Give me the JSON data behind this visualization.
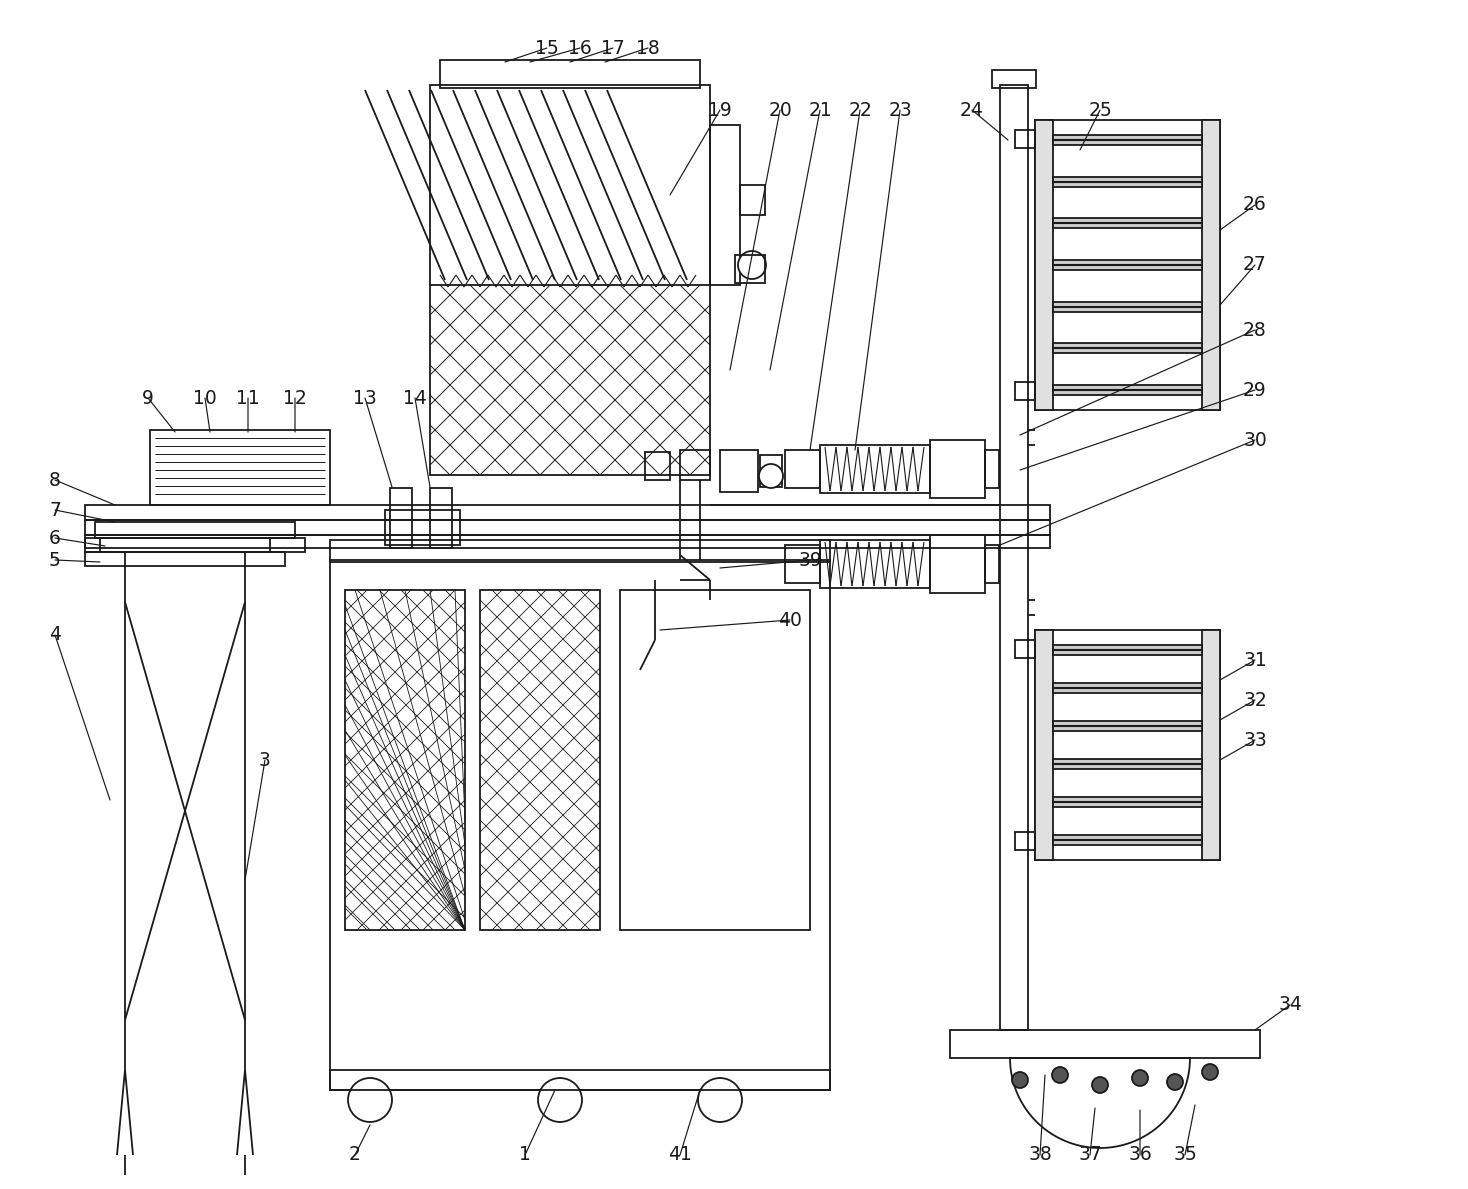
{
  "bg_color": "#ffffff",
  "line_color": "#1a1a1a",
  "lw": 1.3,
  "lw_thin": 0.7,
  "lw_thick": 2.0,
  "fig_width": 14.68,
  "fig_height": 11.89
}
